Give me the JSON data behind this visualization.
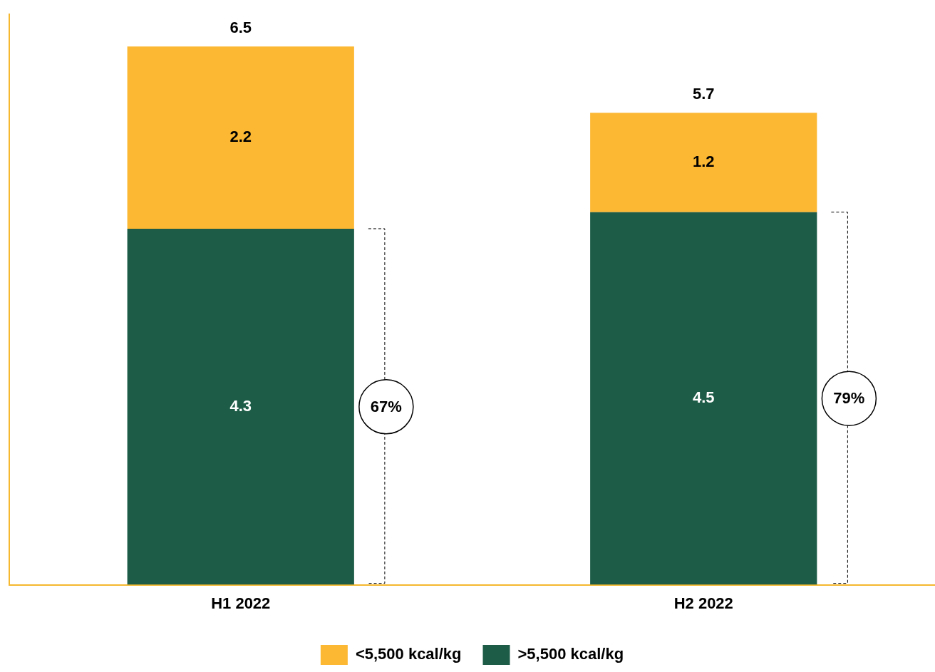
{
  "chart_data": {
    "type": "bar",
    "stacked": true,
    "categories": [
      "H1 2022",
      "H2 2022"
    ],
    "series": [
      {
        "name": ">5,500 kcal/kg",
        "color": "#1d5c47",
        "values": [
          4.3,
          4.5
        ]
      },
      {
        "name": "<5,500 kcal/kg",
        "color": "#fcb833",
        "values": [
          2.2,
          1.2
        ]
      }
    ],
    "data_labels": true,
    "totals": [
      "6.5",
      "5.7"
    ],
    "annotations": [
      "67%",
      "79%"
    ],
    "legend": "bottom",
    "grid": false
  }
}
